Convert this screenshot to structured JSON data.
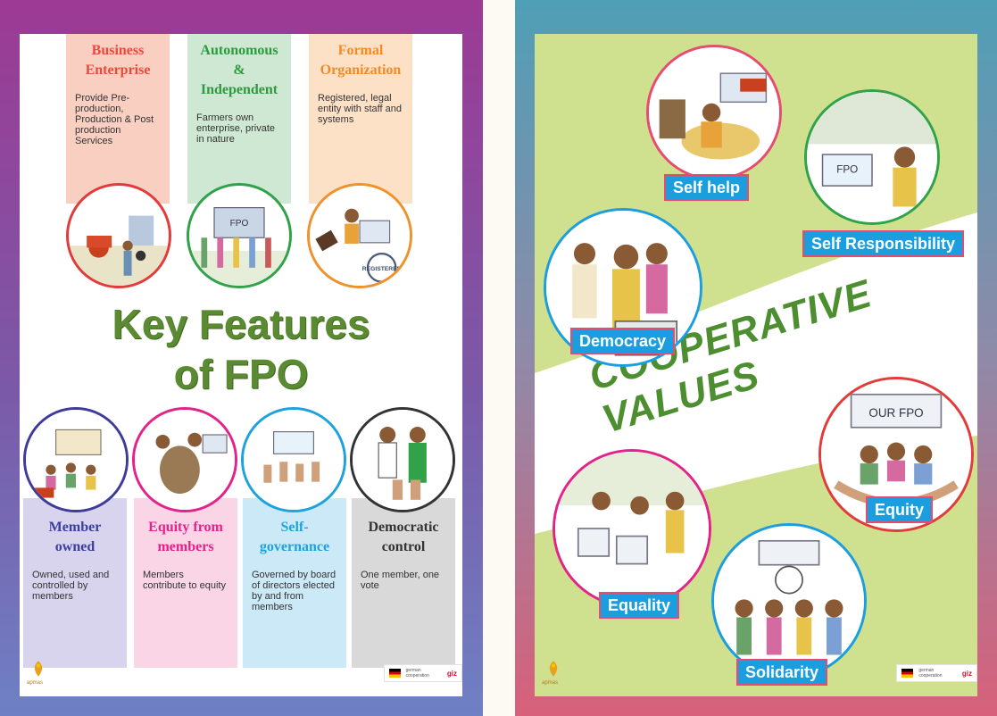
{
  "left_poster": {
    "title_line1": "Key Features",
    "title_line2": "of FPO",
    "top_columns": [
      {
        "title": "Business Enterprise",
        "desc": "Provide Pre-production, Production & Post production Services",
        "color": "#f9cfc2",
        "title_color": "#e84b3a",
        "ring": "#e23b3b"
      },
      {
        "title": "Autonomous & Independent",
        "desc": "Farmers own enterprise, private in nature",
        "color": "#cfe8d3",
        "title_color": "#2e9a3c",
        "ring": "#2fa24a"
      },
      {
        "title": "Formal Organization",
        "desc": "Registered, legal entity with staff and systems",
        "color": "#fde1c7",
        "title_color": "#f28a28",
        "ring": "#f0922c"
      }
    ],
    "bottom_columns": [
      {
        "title": "Member owned",
        "desc": "Owned, used and controlled by members",
        "color": "#d8d4ee",
        "title_color": "#3b3fa0",
        "ring": "#3e3b9a"
      },
      {
        "title": "Equity from members",
        "desc": "Members contribute to equity",
        "color": "#f9d5e6",
        "title_color": "#e3238a",
        "ring": "#e3238a"
      },
      {
        "title": "Self-governance",
        "desc": "Governed by board of directors elected by and from members",
        "color": "#cce9f8",
        "title_color": "#1ea2dd",
        "ring": "#1ea2dd"
      },
      {
        "title": "Democratic control",
        "desc": "One member, one vote",
        "color": "#d9d9d9",
        "title_color": "#333333",
        "ring": "#333333"
      }
    ],
    "illustration_text": {
      "registered_stamp": "REGISTERED",
      "fpo_sign": "FPO"
    },
    "logo_text": "apmas",
    "partner_text": "german cooperation",
    "giz_text": "giz"
  },
  "right_poster": {
    "title": "COOPERATIVE VALUES",
    "values": [
      {
        "label": "Self help",
        "ring": "#e64c70"
      },
      {
        "label": "Self Responsibility",
        "ring": "#2fa24a"
      },
      {
        "label": "Democracy",
        "ring": "#1a9ee0"
      },
      {
        "label": "Equity",
        "ring": "#e23b3b"
      },
      {
        "label": "Equality",
        "ring": "#e3238a"
      },
      {
        "label": "Solidarity",
        "ring": "#1a9ee0"
      }
    ],
    "illustration_text": {
      "our_fpo": "OUR FPO",
      "fpo": "FPO"
    },
    "logo_text": "apmas",
    "partner_text": "german cooperation",
    "giz_text": "giz"
  }
}
